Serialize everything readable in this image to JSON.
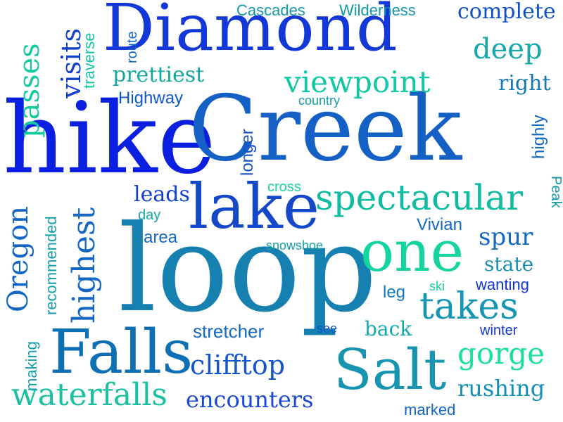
{
  "words": {
    "hike": "hike",
    "creek": "Creek",
    "diamond": "Diamond",
    "loop": "loop",
    "lake": "lake",
    "falls": "Falls",
    "salt": "Salt",
    "one": "one",
    "spectacular": "spectacular",
    "takes": "takes",
    "viewpoint": "viewpoint",
    "deep": "deep",
    "waterfalls": "waterfalls",
    "clifftop": "clifftop",
    "encounters": "encounters",
    "gorge": "gorge",
    "rushing": "rushing",
    "complete": "complete",
    "prettiest": "prettiest",
    "highway": "Highway",
    "cascades": "Cascades",
    "wilderness": "Wilderness",
    "right": "right",
    "country": "country",
    "leads": "leads",
    "day": "day",
    "area": "area",
    "cross": "cross",
    "snowshoe": "snowshoe",
    "vivian": "Vivian",
    "spur": "spur",
    "state": "state",
    "wanting": "wanting",
    "leg": "leg",
    "ski": "ski",
    "see": "see",
    "back": "back",
    "winter": "winter",
    "stretcher": "stretcher",
    "marked": "marked",
    "passes": "passes",
    "visits": "visits",
    "traverse": "traverse",
    "route": "route",
    "oregon": "Oregon",
    "recommended": "recommended",
    "highest": "highest",
    "making": "making",
    "longer": "longer",
    "highly": "highly",
    "peak": "Peak"
  }
}
